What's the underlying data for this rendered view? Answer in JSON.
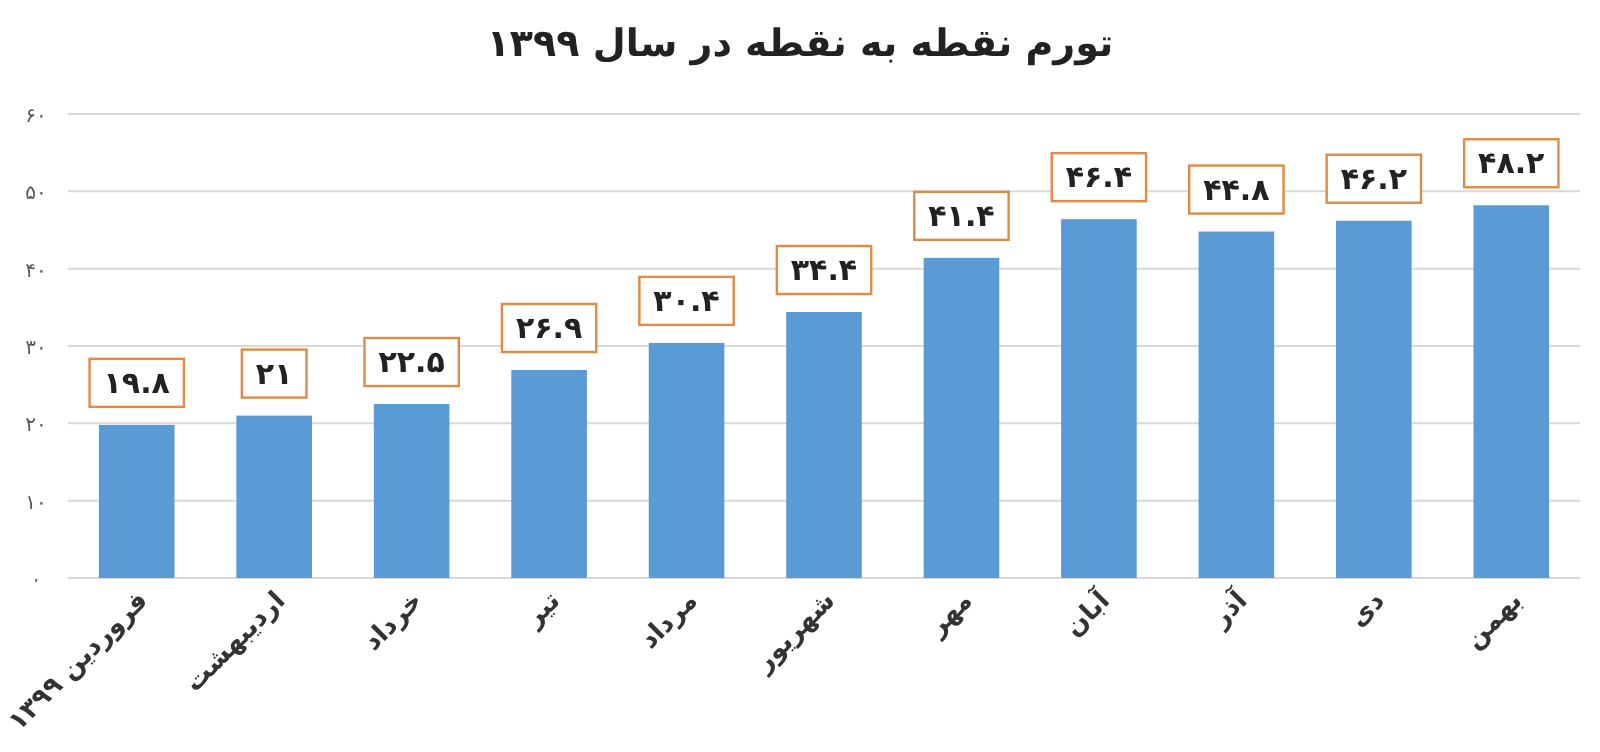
{
  "chart_data": {
    "type": "bar",
    "title": "تورم نقطه به نقطه در سال ۱۳۹۹",
    "categories": [
      "فروردین ۱۳۹۹",
      "اردیبهشت",
      "خرداد",
      "تیر",
      "مرداد",
      "شهریور",
      "مهر",
      "آبان",
      "آذر",
      "دی",
      "بهمن"
    ],
    "values": [
      19.8,
      21,
      22.5,
      26.9,
      30.4,
      34.4,
      41.4,
      46.4,
      44.8,
      46.2,
      48.2
    ],
    "value_labels": [
      "۱۹.۸",
      "۲۱",
      "۲۲.۵",
      "۲۶.۹",
      "۳۰.۴",
      "۳۴.۴",
      "۴۱.۴",
      "۴۶.۴",
      "۴۴.۸",
      "۴۶.۲",
      "۴۸.۲"
    ],
    "color": "#5b9bd5",
    "ylim": [
      0,
      60
    ],
    "yticks": [
      {
        "value": 0,
        "label": "۰"
      },
      {
        "value": 10,
        "label": "۱۰"
      },
      {
        "value": 20,
        "label": "۲۰"
      },
      {
        "value": 30,
        "label": "۳۰"
      },
      {
        "value": 40,
        "label": "۴۰"
      },
      {
        "value": 50,
        "label": "۵۰"
      },
      {
        "value": 60,
        "label": "۶۰"
      }
    ],
    "grid": "y"
  }
}
